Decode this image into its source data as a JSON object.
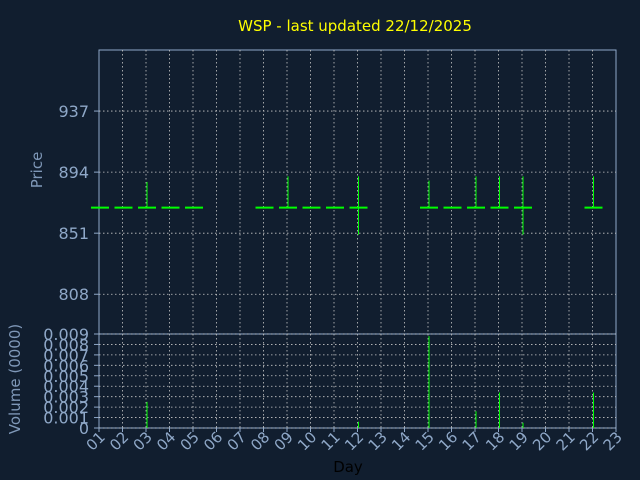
{
  "title": "WSP - last updated 22/12/2025",
  "colors": {
    "background": "#111e2f",
    "title": "#ffff00",
    "axis_text": "#8fa8c8",
    "axis_label": "#7f98b8",
    "grid": "#c8c8c8",
    "series": "#00ff00"
  },
  "chart_data": [
    {
      "type": "ohlc",
      "ylabel": "Price",
      "ylim": [
        780,
        980
      ],
      "yticks": [
        "937",
        "894",
        "851",
        "808"
      ],
      "grid": true,
      "days": [
        1,
        2,
        3,
        4,
        5,
        8,
        9,
        10,
        11,
        12,
        15,
        16,
        17,
        18,
        19,
        22
      ],
      "ohlc": [
        {
          "open": 869,
          "high": 869,
          "low": 869,
          "close": 869
        },
        {
          "open": 869,
          "high": 869,
          "low": 869,
          "close": 869
        },
        {
          "open": 869,
          "high": 887,
          "low": 869,
          "close": 869
        },
        {
          "open": 869,
          "high": 869,
          "low": 869,
          "close": 869
        },
        {
          "open": 869,
          "high": 869,
          "low": 869,
          "close": 869
        },
        {
          "open": 869,
          "high": 869,
          "low": 869,
          "close": 869
        },
        {
          "open": 869,
          "high": 891,
          "low": 869,
          "close": 869
        },
        {
          "open": 869,
          "high": 869,
          "low": 869,
          "close": 869
        },
        {
          "open": 869,
          "high": 869,
          "low": 869,
          "close": 869
        },
        {
          "open": 869,
          "high": 891,
          "low": 850,
          "close": 869
        },
        {
          "open": 869,
          "high": 888,
          "low": 869,
          "close": 869
        },
        {
          "open": 869,
          "high": 869,
          "low": 869,
          "close": 869
        },
        {
          "open": 869,
          "high": 891,
          "low": 869,
          "close": 869
        },
        {
          "open": 869,
          "high": 891,
          "low": 869,
          "close": 869
        },
        {
          "open": 869,
          "high": 891,
          "low": 850,
          "close": 869
        },
        {
          "open": 869,
          "high": 891,
          "low": 869,
          "close": 869
        }
      ]
    },
    {
      "type": "bar",
      "ylabel": "Volume (0000)",
      "xlabel": "Day",
      "ylim": [
        0,
        0.009
      ],
      "yticks": [
        "0",
        "0.001",
        "0.002",
        "0.003",
        "0.004",
        "0.005",
        "0.006",
        "0.007",
        "0.008",
        "0.009"
      ],
      "xticks": [
        "01",
        "02",
        "03",
        "04",
        "05",
        "06",
        "07",
        "08",
        "09",
        "10",
        "11",
        "12",
        "13",
        "14",
        "15",
        "16",
        "17",
        "18",
        "19",
        "20",
        "21",
        "22",
        "23"
      ],
      "grid": true,
      "days": [
        3,
        12,
        15,
        17,
        18,
        19,
        22
      ],
      "values": [
        0.0025,
        0.0006,
        0.0088,
        0.0016,
        0.0034,
        0.0005,
        0.0034
      ]
    }
  ]
}
